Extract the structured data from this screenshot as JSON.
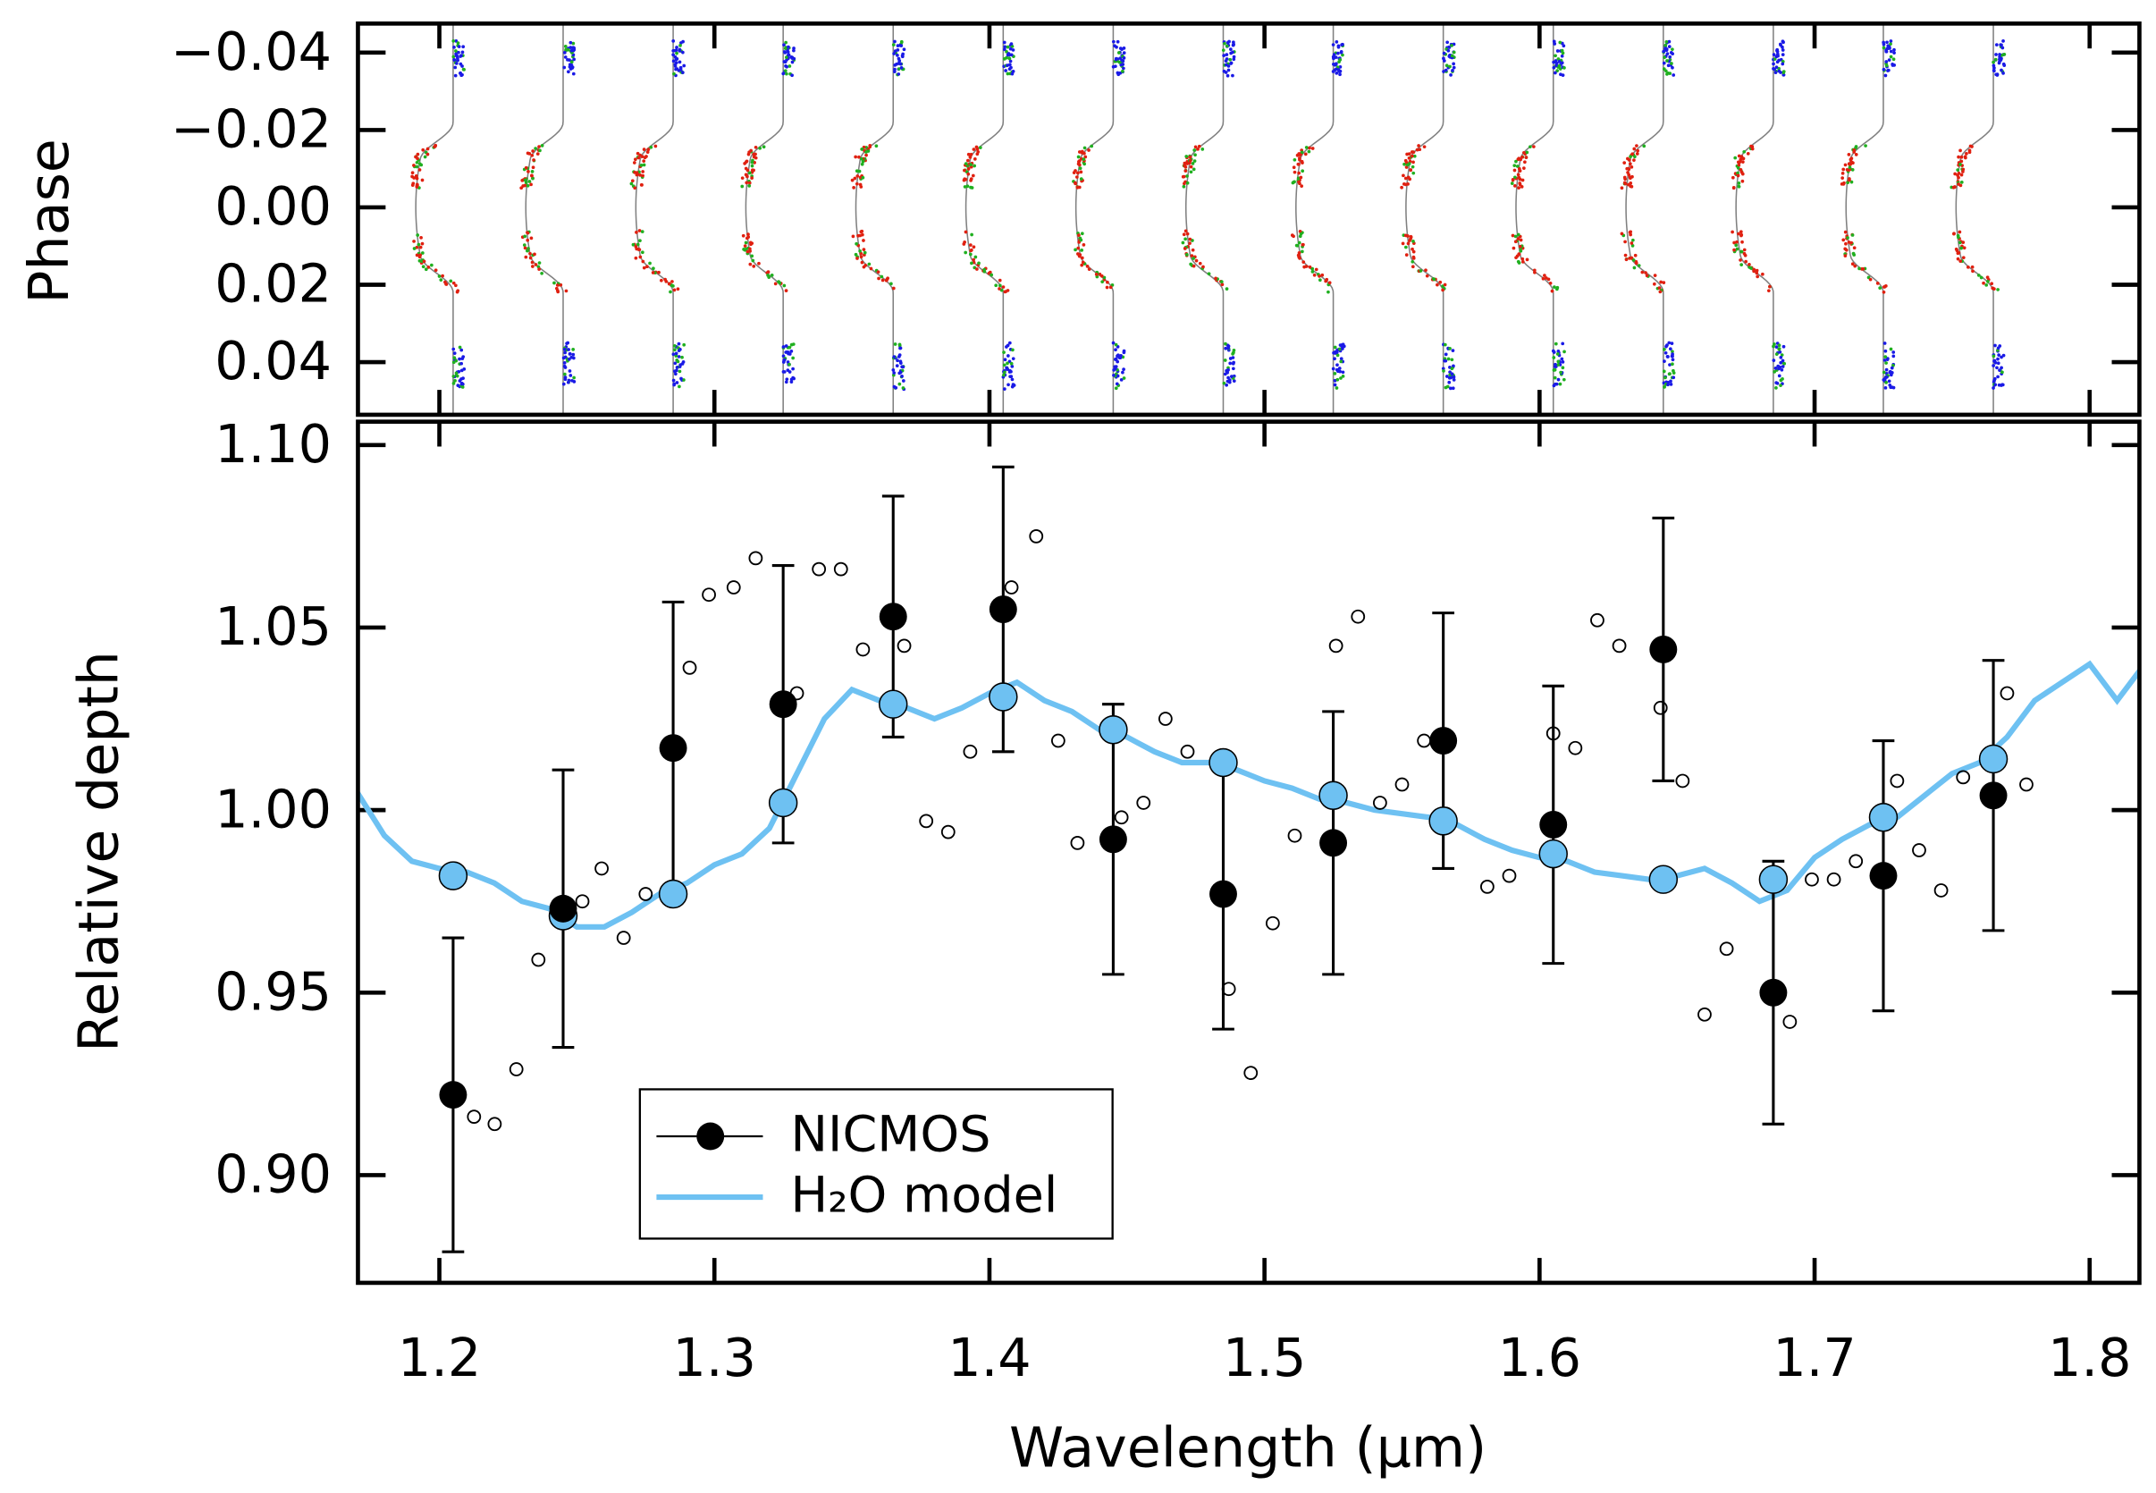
{
  "chart_data": [
    {
      "type": "lightcurve",
      "ylabel": "Phase",
      "xlim": [
        1.1704,
        1.8181
      ],
      "xticks": [
        1.2,
        1.3,
        1.4,
        1.5,
        1.6,
        1.7,
        1.8
      ],
      "ylim": [
        0.0536,
        -0.0475
      ],
      "yticks": [
        {
          "value": -0.04,
          "label": "−0.04"
        },
        {
          "value": -0.02,
          "label": "−0.02"
        },
        {
          "value": 0,
          "label": "0.00"
        },
        {
          "value": 0.02,
          "label": "0.02"
        },
        {
          "value": 0.04,
          "label": "0.04"
        }
      ],
      "x": [
        1.205,
        1.245,
        1.285,
        1.325,
        1.365,
        1.405,
        1.445,
        1.485,
        1.525,
        1.565,
        1.605,
        1.645,
        1.685,
        1.725,
        1.765
      ],
      "colors": {
        "out_of_transit": "#1a1ae6",
        "in_transit": "#e02010",
        "alt": "#20b020",
        "model": "#808080"
      }
    },
    {
      "type": "errorbar",
      "xlabel": "Wavelength (μm)",
      "ylabel": "Relative depth",
      "xlim": [
        1.1704,
        1.8181
      ],
      "xticks": [
        1.2,
        1.3,
        1.4,
        1.5,
        1.6,
        1.7,
        1.8
      ],
      "ylim": [
        0.8705,
        1.1064
      ],
      "yticks": [
        {
          "value": 0.9,
          "label": "0.90"
        },
        0.95,
        {
          "value": 1,
          "label": "1.00"
        },
        1.05,
        {
          "value": 1.1,
          "label": "1.10"
        }
      ],
      "legend": "lower left",
      "series": [
        {
          "name": "NICMOS",
          "color": "#000000",
          "x": [
            1.205,
            1.245,
            1.285,
            1.325,
            1.365,
            1.405,
            1.445,
            1.485,
            1.525,
            1.565,
            1.605,
            1.645,
            1.685,
            1.725,
            1.765
          ],
          "values": [
            0.922,
            0.973,
            1.017,
            1.029,
            1.053,
            1.055,
            0.992,
            0.977,
            0.991,
            1.019,
            0.996,
            1.044,
            0.95,
            0.982,
            1.004
          ],
          "errors": [
            0.043,
            0.038,
            0.04,
            0.038,
            0.033,
            0.039,
            0.037,
            0.037,
            0.036,
            0.035,
            0.038,
            0.036,
            0.036,
            0.037,
            0.037
          ]
        },
        {
          "name": "H₂O model",
          "color": "#6ec1f2",
          "x": [
            1.17,
            1.18,
            1.19,
            1.2,
            1.21,
            1.22,
            1.23,
            1.24,
            1.25,
            1.26,
            1.27,
            1.28,
            1.29,
            1.3,
            1.31,
            1.32,
            1.33,
            1.34,
            1.35,
            1.36,
            1.37,
            1.38,
            1.39,
            1.4,
            1.41,
            1.42,
            1.43,
            1.44,
            1.45,
            1.46,
            1.47,
            1.48,
            1.49,
            1.5,
            1.51,
            1.52,
            1.53,
            1.54,
            1.55,
            1.56,
            1.57,
            1.58,
            1.59,
            1.6,
            1.61,
            1.62,
            1.63,
            1.64,
            1.65,
            1.66,
            1.67,
            1.68,
            1.69,
            1.7,
            1.71,
            1.72,
            1.73,
            1.74,
            1.75,
            1.76,
            1.77,
            1.78,
            1.79,
            1.8,
            1.81,
            1.82
          ],
          "values": [
            1.005,
            0.993,
            0.986,
            0.984,
            0.983,
            0.98,
            0.975,
            0.973,
            0.968,
            0.968,
            0.972,
            0.977,
            0.98,
            0.985,
            0.988,
            0.995,
            1.01,
            1.025,
            1.033,
            1.03,
            1.028,
            1.025,
            1.028,
            1.032,
            1.035,
            1.03,
            1.027,
            1.022,
            1.02,
            1.016,
            1.013,
            1.013,
            1.011,
            1.008,
            1.006,
            1.003,
            1.002,
            1.0,
            0.999,
            0.998,
            0.996,
            0.992,
            0.989,
            0.987,
            0.986,
            0.983,
            0.982,
            0.981,
            0.982,
            0.984,
            0.98,
            0.975,
            0.978,
            0.987,
            0.992,
            0.996,
            0.998,
            1.004,
            1.01,
            1.013,
            1.02,
            1.03,
            1.035,
            1.04,
            1.03,
            1.04
          ]
        }
      ],
      "model_binned": {
        "color": "#6ec1f2",
        "x": [
          1.205,
          1.245,
          1.285,
          1.325,
          1.365,
          1.405,
          1.445,
          1.485,
          1.525,
          1.565,
          1.605,
          1.645,
          1.685,
          1.725,
          1.765
        ],
        "values": [
          0.982,
          0.971,
          0.977,
          1.002,
          1.029,
          1.031,
          1.022,
          1.013,
          1.004,
          0.997,
          0.988,
          0.981,
          0.981,
          0.998,
          1.014
        ]
      },
      "open_points": {
        "x": [
          1.2126,
          1.2201,
          1.228,
          1.236,
          1.252,
          1.259,
          1.267,
          1.275,
          1.291,
          1.298,
          1.307,
          1.315,
          1.33,
          1.338,
          1.346,
          1.354,
          1.369,
          1.377,
          1.385,
          1.393,
          1.408,
          1.417,
          1.425,
          1.432,
          1.448,
          1.456,
          1.464,
          1.472,
          1.487,
          1.495,
          1.503,
          1.511,
          1.526,
          1.534,
          1.542,
          1.55,
          1.558,
          1.566,
          1.581,
          1.589,
          1.605,
          1.613,
          1.621,
          1.629,
          1.644,
          1.652,
          1.66,
          1.668,
          1.683,
          1.691,
          1.699,
          1.707,
          1.715,
          1.73,
          1.738,
          1.746,
          1.754,
          1.77,
          1.777
        ],
        "values": [
          0.916,
          0.914,
          0.929,
          0.959,
          0.975,
          0.984,
          0.965,
          0.977,
          1.039,
          1.059,
          1.061,
          1.069,
          1.032,
          1.066,
          1.066,
          1.044,
          1.045,
          0.997,
          0.994,
          1.016,
          1.061,
          1.075,
          1.019,
          0.991,
          0.998,
          1.002,
          1.025,
          1.016,
          0.951,
          0.928,
          0.969,
          0.993,
          1.045,
          1.053,
          1.002,
          1.007,
          1.019,
          0.999,
          0.979,
          0.982,
          1.021,
          1.017,
          1.052,
          1.045,
          1.028,
          1.008,
          0.944,
          0.962,
          0.95,
          0.942,
          0.981,
          0.981,
          0.986,
          1.008,
          0.989,
          0.978,
          1.009,
          1.032,
          1.007
        ]
      }
    }
  ]
}
